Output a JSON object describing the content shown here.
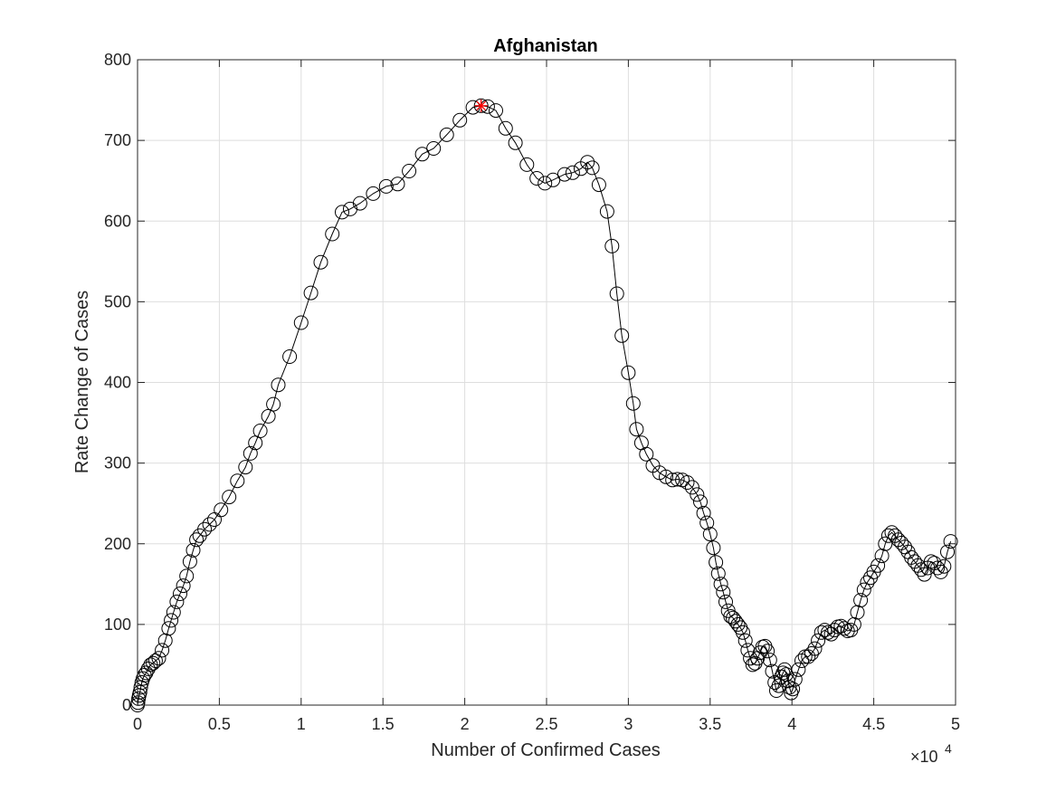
{
  "chart_data": {
    "type": "line",
    "title": "Afghanistan",
    "xlabel": "Number of Confirmed Cases",
    "ylabel": "Rate Change of Cases",
    "x_exponent_label": "×10",
    "x_exponent_power": "4",
    "xlim": [
      0,
      50000
    ],
    "ylim": [
      0,
      800
    ],
    "xticks": [
      0,
      5000,
      10000,
      15000,
      20000,
      25000,
      30000,
      35000,
      40000,
      45000,
      50000
    ],
    "xtick_labels": [
      "0",
      "0.5",
      "1",
      "1.5",
      "2",
      "2.5",
      "3",
      "3.5",
      "4",
      "4.5",
      "5"
    ],
    "yticks": [
      0,
      100,
      200,
      300,
      400,
      500,
      600,
      700,
      800
    ],
    "ytick_labels": [
      "0",
      "100",
      "200",
      "300",
      "400",
      "500",
      "600",
      "700",
      "800"
    ],
    "grid": true,
    "line_color": "#000000",
    "marker": "circle",
    "highlight_color": "#ff0000",
    "highlight": {
      "x": 21000,
      "y": 743
    },
    "points": [
      [
        0,
        0
      ],
      [
        30,
        3
      ],
      [
        60,
        8
      ],
      [
        100,
        12
      ],
      [
        150,
        16
      ],
      [
        200,
        22
      ],
      [
        260,
        28
      ],
      [
        330,
        33
      ],
      [
        420,
        37
      ],
      [
        520,
        40
      ],
      [
        650,
        45
      ],
      [
        800,
        50
      ],
      [
        950,
        52
      ],
      [
        1100,
        55
      ],
      [
        1300,
        58
      ],
      [
        1500,
        68
      ],
      [
        1700,
        80
      ],
      [
        1900,
        95
      ],
      [
        2050,
        105
      ],
      [
        2200,
        115
      ],
      [
        2400,
        128
      ],
      [
        2600,
        138
      ],
      [
        2800,
        148
      ],
      [
        3000,
        160
      ],
      [
        3200,
        178
      ],
      [
        3400,
        192
      ],
      [
        3600,
        205
      ],
      [
        3800,
        210
      ],
      [
        4100,
        218
      ],
      [
        4400,
        224
      ],
      [
        4700,
        230
      ],
      [
        5100,
        242
      ],
      [
        5600,
        258
      ],
      [
        6100,
        278
      ],
      [
        6600,
        295
      ],
      [
        6900,
        312
      ],
      [
        7200,
        325
      ],
      [
        7500,
        340
      ],
      [
        8000,
        358
      ],
      [
        8300,
        373
      ],
      [
        8600,
        397
      ],
      [
        9300,
        432
      ],
      [
        10000,
        474
      ],
      [
        10600,
        511
      ],
      [
        11200,
        549
      ],
      [
        11900,
        584
      ],
      [
        12500,
        611
      ],
      [
        13000,
        615
      ],
      [
        13600,
        622
      ],
      [
        14400,
        634
      ],
      [
        15200,
        643
      ],
      [
        15900,
        646
      ],
      [
        16600,
        662
      ],
      [
        17400,
        683
      ],
      [
        18100,
        690
      ],
      [
        18900,
        707
      ],
      [
        19700,
        725
      ],
      [
        20500,
        741
      ],
      [
        21000,
        743
      ],
      [
        21400,
        742
      ],
      [
        21900,
        737
      ],
      [
        22500,
        715
      ],
      [
        23100,
        697
      ],
      [
        23800,
        670
      ],
      [
        24400,
        653
      ],
      [
        24900,
        647
      ],
      [
        25400,
        651
      ],
      [
        26100,
        658
      ],
      [
        26600,
        660
      ],
      [
        27100,
        665
      ],
      [
        27500,
        673
      ],
      [
        27800,
        666
      ],
      [
        28200,
        645
      ],
      [
        28700,
        612
      ],
      [
        29000,
        569
      ],
      [
        29300,
        510
      ],
      [
        29600,
        458
      ],
      [
        30000,
        412
      ],
      [
        30300,
        374
      ],
      [
        30500,
        342
      ],
      [
        30800,
        325
      ],
      [
        31100,
        311
      ],
      [
        31500,
        297
      ],
      [
        31900,
        288
      ],
      [
        32300,
        283
      ],
      [
        32700,
        279
      ],
      [
        33000,
        280
      ],
      [
        33300,
        279
      ],
      [
        33600,
        276
      ],
      [
        33900,
        270
      ],
      [
        34200,
        261
      ],
      [
        34400,
        252
      ],
      [
        34600,
        238
      ],
      [
        34800,
        226
      ],
      [
        35000,
        212
      ],
      [
        35200,
        195
      ],
      [
        35350,
        177
      ],
      [
        35500,
        163
      ],
      [
        35650,
        150
      ],
      [
        35800,
        140
      ],
      [
        35950,
        128
      ],
      [
        36100,
        117
      ],
      [
        36250,
        110
      ],
      [
        36400,
        108
      ],
      [
        36550,
        104
      ],
      [
        36700,
        100
      ],
      [
        36850,
        96
      ],
      [
        37000,
        90
      ],
      [
        37150,
        80
      ],
      [
        37300,
        68
      ],
      [
        37450,
        58
      ],
      [
        37600,
        50
      ],
      [
        37750,
        52
      ],
      [
        37900,
        58
      ],
      [
        38050,
        65
      ],
      [
        38200,
        72
      ],
      [
        38350,
        73
      ],
      [
        38500,
        67
      ],
      [
        38650,
        56
      ],
      [
        38800,
        42
      ],
      [
        38950,
        28
      ],
      [
        39050,
        18
      ],
      [
        39200,
        24
      ],
      [
        39350,
        35
      ],
      [
        39450,
        40
      ],
      [
        39550,
        44
      ],
      [
        39650,
        38
      ],
      [
        39750,
        30
      ],
      [
        39850,
        22
      ],
      [
        39950,
        15
      ],
      [
        40050,
        20
      ],
      [
        40200,
        32
      ],
      [
        40400,
        44
      ],
      [
        40600,
        55
      ],
      [
        40800,
        60
      ],
      [
        41000,
        60
      ],
      [
        41200,
        64
      ],
      [
        41400,
        70
      ],
      [
        41600,
        80
      ],
      [
        41800,
        90
      ],
      [
        42000,
        93
      ],
      [
        42200,
        90
      ],
      [
        42400,
        88
      ],
      [
        42600,
        93
      ],
      [
        42800,
        97
      ],
      [
        43000,
        98
      ],
      [
        43200,
        95
      ],
      [
        43400,
        92
      ],
      [
        43600,
        93
      ],
      [
        43800,
        100
      ],
      [
        44000,
        115
      ],
      [
        44200,
        130
      ],
      [
        44400,
        143
      ],
      [
        44600,
        152
      ],
      [
        44800,
        158
      ],
      [
        45000,
        165
      ],
      [
        45250,
        173
      ],
      [
        45500,
        185
      ],
      [
        45700,
        200
      ],
      [
        45900,
        210
      ],
      [
        46100,
        214
      ],
      [
        46300,
        210
      ],
      [
        46500,
        205
      ],
      [
        46700,
        201
      ],
      [
        46900,
        196
      ],
      [
        47100,
        190
      ],
      [
        47300,
        183
      ],
      [
        47500,
        178
      ],
      [
        47700,
        173
      ],
      [
        47900,
        168
      ],
      [
        48100,
        162
      ],
      [
        48300,
        170
      ],
      [
        48500,
        178
      ],
      [
        48700,
        176
      ],
      [
        48900,
        170
      ],
      [
        49100,
        165
      ],
      [
        49300,
        172
      ],
      [
        49500,
        190
      ],
      [
        49700,
        203
      ]
    ]
  }
}
